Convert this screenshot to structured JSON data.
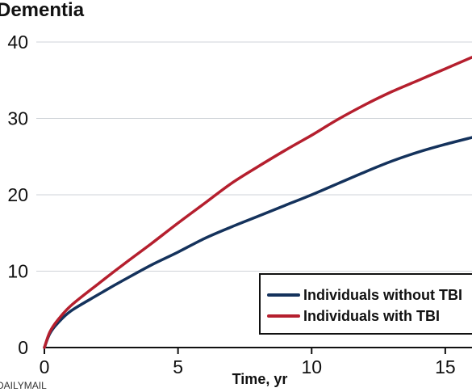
{
  "chart_data": {
    "type": "line",
    "title": "Dementia",
    "xlabel": "Time, yr",
    "ylabel": "",
    "xlim": [
      0,
      16
    ],
    "ylim": [
      0,
      40
    ],
    "x_ticks": [
      "0",
      "5",
      "10",
      "15"
    ],
    "y_ticks": [
      "0",
      "10",
      "20",
      "30",
      "40"
    ],
    "grid": true,
    "legend_position": "bottom-right",
    "series": [
      {
        "name": "Individuals without TBI",
        "color": "#14325c",
        "x": [
          0,
          0.2,
          0.5,
          1,
          2,
          3,
          4,
          5,
          6,
          7,
          8,
          9,
          10,
          11,
          12,
          13,
          14,
          15,
          16
        ],
        "y": [
          0,
          1.8,
          3.2,
          4.8,
          6.9,
          8.9,
          10.8,
          12.5,
          14.3,
          15.8,
          17.2,
          18.6,
          20.0,
          21.5,
          23.0,
          24.4,
          25.6,
          26.6,
          27.5
        ]
      },
      {
        "name": "Individuals with TBI",
        "color": "#b51f2e",
        "x": [
          0,
          0.2,
          0.5,
          1,
          2,
          3,
          4,
          5,
          6,
          7,
          8,
          9,
          10,
          11,
          12,
          13,
          14,
          15,
          16
        ],
        "y": [
          0,
          2.0,
          3.6,
          5.5,
          8.3,
          11.0,
          13.6,
          16.3,
          18.9,
          21.5,
          23.7,
          25.8,
          27.8,
          29.9,
          31.8,
          33.5,
          35.0,
          36.5,
          38.0
        ]
      }
    ]
  },
  "credit": "DAILYMAIL"
}
